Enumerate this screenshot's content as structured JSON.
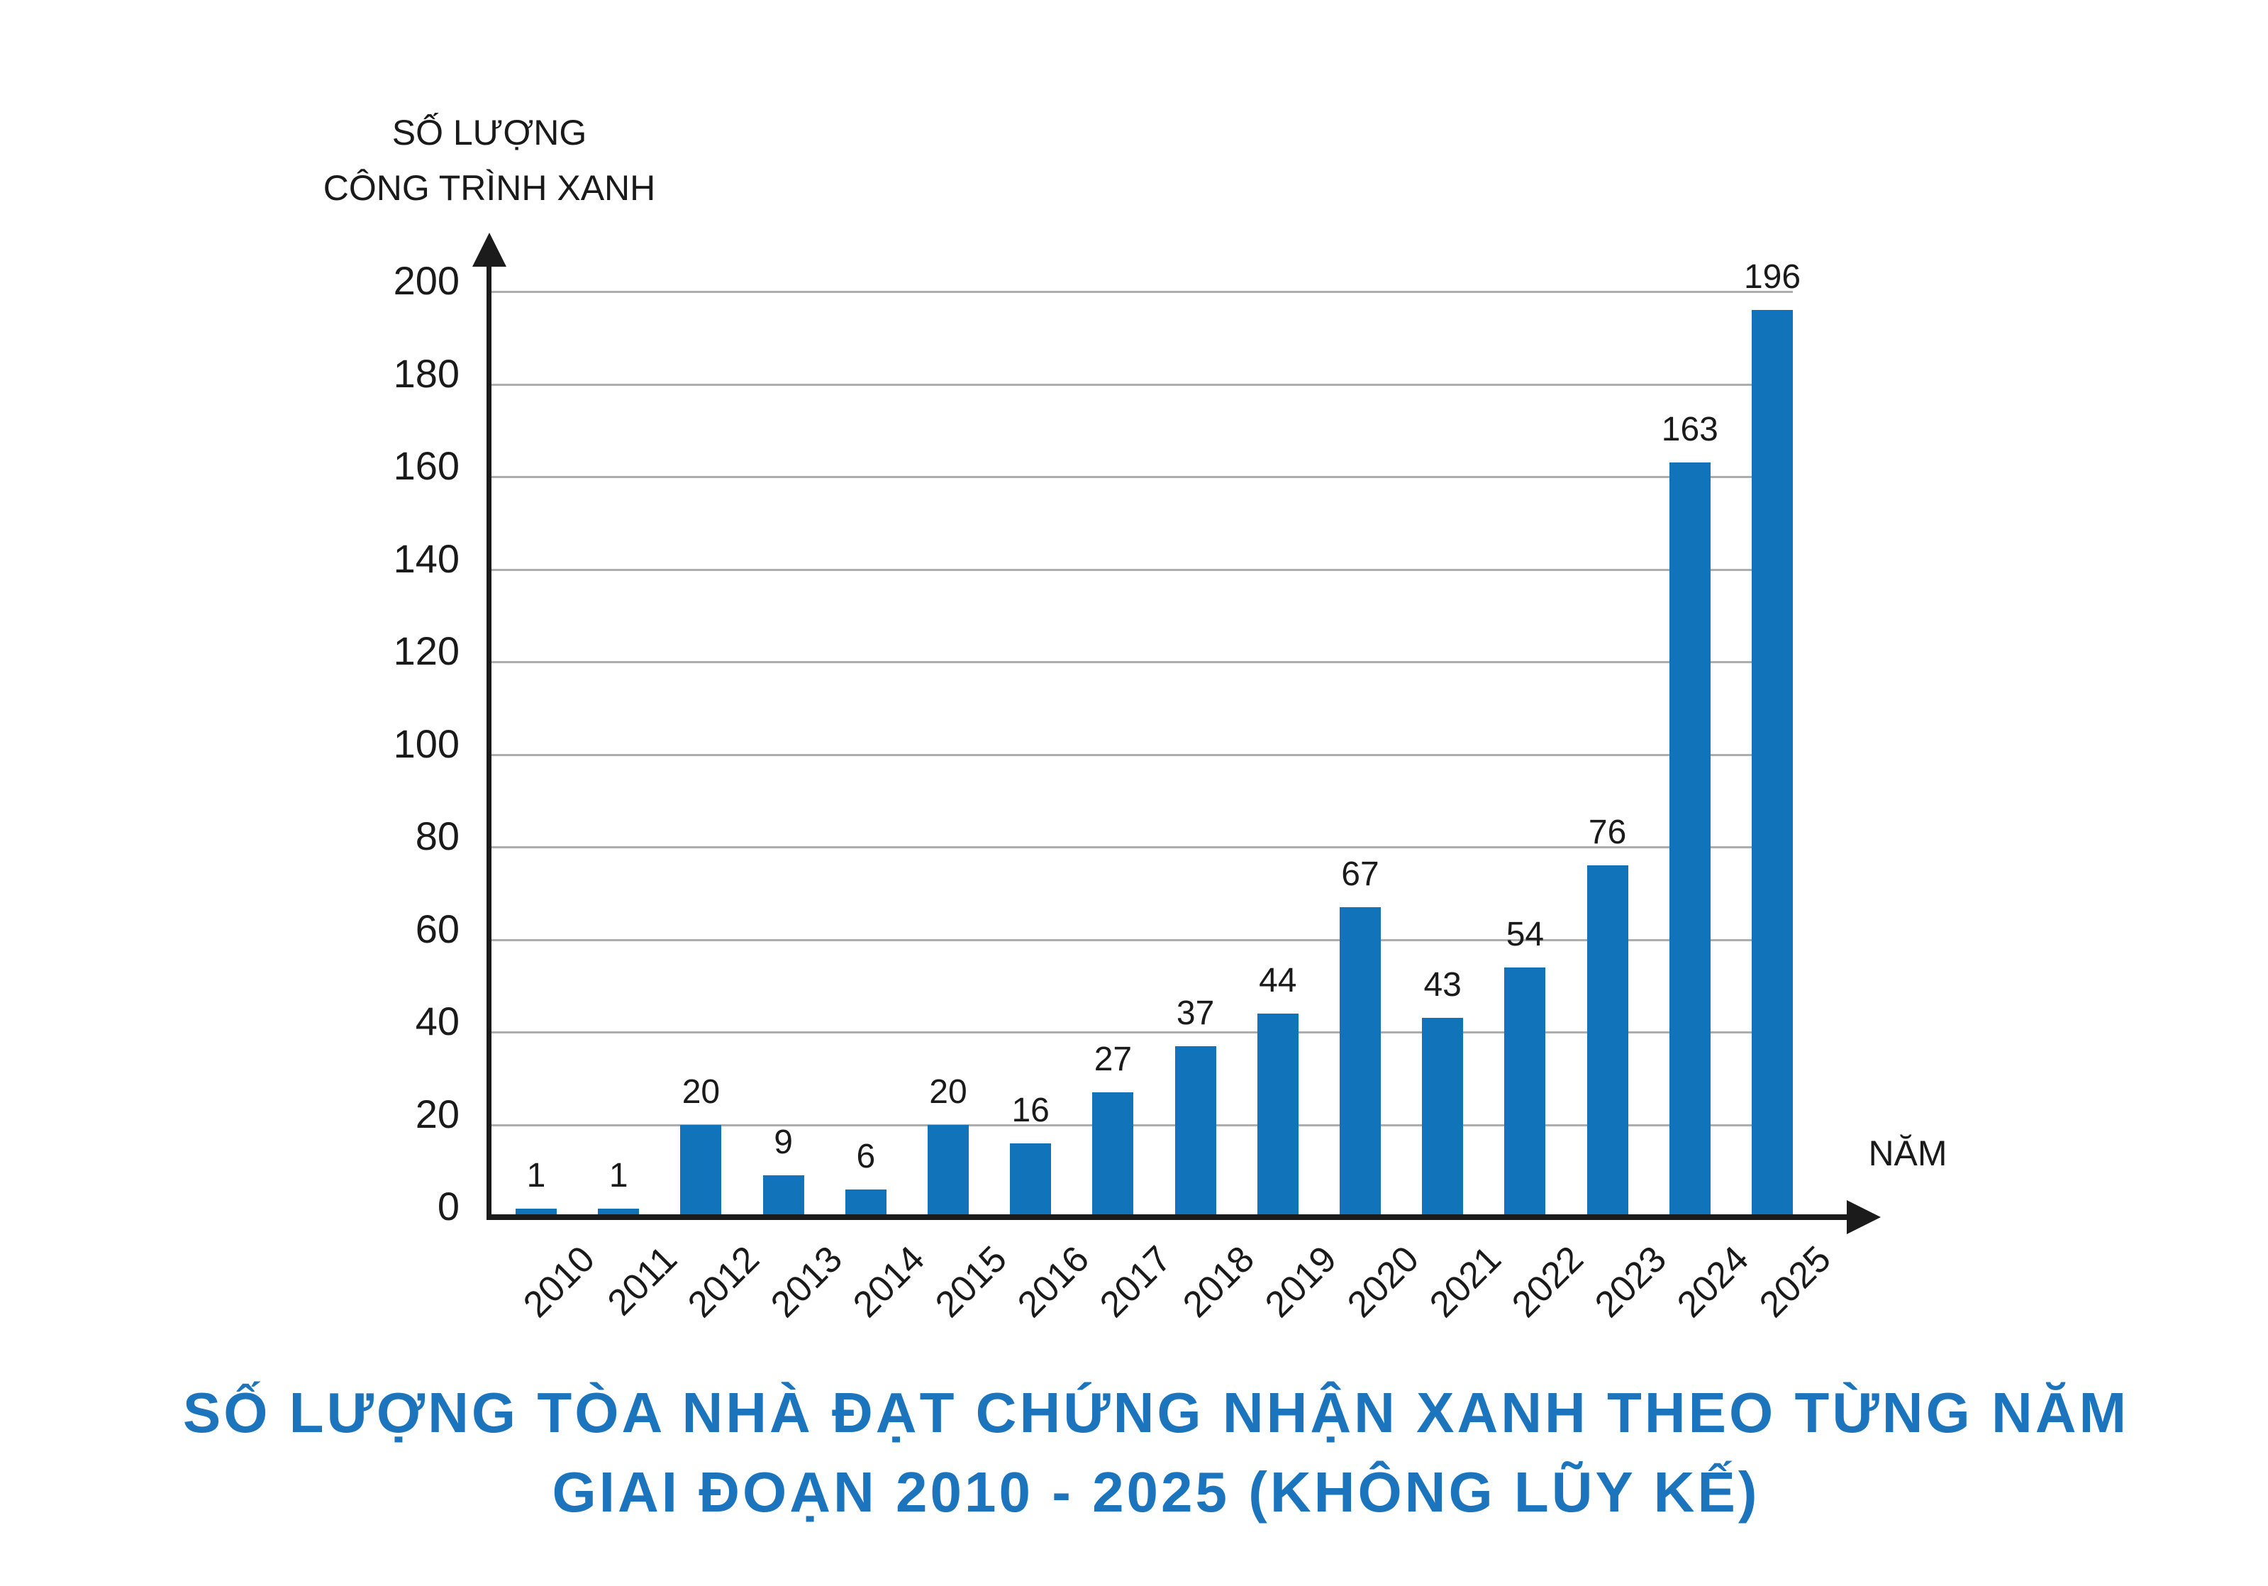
{
  "chart_data": {
    "type": "bar",
    "title": "SỐ LƯỢNG TÒA NHÀ ĐẠT CHỨNG NHẬN XANH THEO TỪNG NĂM GIAI ĐOẠN 2010 - 2025 (KHÔNG LŨY KẾ)",
    "title_lines": [
      "SỐ LƯỢNG TÒA NHÀ ĐẠT CHỨNG NHẬN XANH THEO TỪNG NĂM",
      "GIAI ĐOẠN 2010 - 2025 (KHÔNG LŨY KẾ)"
    ],
    "y_axis_label_lines": [
      "SỐ LƯỢNG",
      "CÔNG TRÌNH XANH"
    ],
    "x_axis_label": "NĂM",
    "categories": [
      "2010",
      "2011",
      "2012",
      "2013",
      "2014",
      "2015",
      "2016",
      "2017",
      "2018",
      "2019",
      "2020",
      "2021",
      "2022",
      "2023",
      "2024",
      "2025"
    ],
    "values": [
      1,
      1,
      20,
      9,
      6,
      20,
      16,
      27,
      37,
      44,
      67,
      43,
      54,
      76,
      163,
      196
    ],
    "y_ticks": [
      0,
      20,
      40,
      60,
      80,
      100,
      120,
      140,
      160,
      180,
      200
    ],
    "ylim": [
      0,
      200
    ],
    "xlabel": "NĂM",
    "ylabel": "SỐ LƯỢNG CÔNG TRÌNH XANH",
    "grid": true,
    "legend_position": "none",
    "colors": {
      "bar": "#1173b9",
      "title": "#1c75bc",
      "axis": "#1b1b1b",
      "gridline": "#adadad",
      "label": "#1a1a1a",
      "background": "#ffffff"
    }
  }
}
